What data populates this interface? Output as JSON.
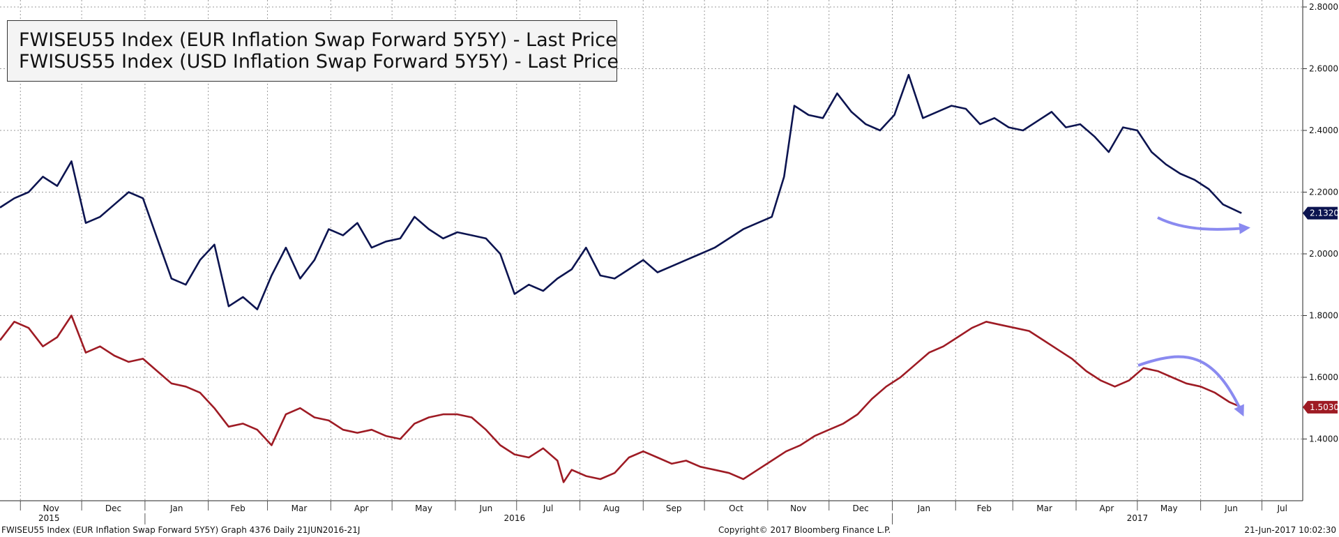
{
  "legend": {
    "items": [
      {
        "label": "FWISEU55 Index (EUR Inflation Swap Forward 5Y5Y) - Last Price",
        "color": "#9e1b24"
      },
      {
        "label": "FWISUS55 Index (USD Inflation Swap Forward 5Y5Y) - Last Price",
        "color": "#0c1450"
      }
    ]
  },
  "footer": {
    "left": "FWISEU55 Index (EUR Inflation Swap Forward 5Y5Y) Graph 4376  Daily 21JUN2016-21J",
    "center": "Copyright© 2017 Bloomberg Finance L.P.",
    "right": "21-Jun-2017 10:02:30"
  },
  "chart_data": {
    "type": "line",
    "y_ticks": [
      "2.8000",
      "2.6000",
      "2.4000",
      "2.2000",
      "2.0000",
      "1.8000",
      "1.6000",
      "1.4000"
    ],
    "ylim": [
      1.2,
      2.8
    ],
    "x_months": [
      "Nov",
      "Dec",
      "Jan",
      "Feb",
      "Mar",
      "Apr",
      "May",
      "Jun",
      "Jul",
      "Aug",
      "Sep",
      "Oct",
      "Nov",
      "Dec",
      "Jan",
      "Feb",
      "Mar",
      "Apr",
      "May",
      "Jun",
      "Jul"
    ],
    "x_years": [
      "2015",
      "2016",
      "2017"
    ],
    "xlim": [
      "2015-10-22",
      "2017-07-21"
    ],
    "grid": true,
    "legend_position": "top-left",
    "series": [
      {
        "name": "FWISEU55 Index (EUR Inflation Swap Forward 5Y5Y) - Last Price",
        "color": "#9e1b24",
        "last_label": "1.5030",
        "points": [
          [
            "2015-10-22",
            1.72
          ],
          [
            "2015-10-29",
            1.78
          ],
          [
            "2015-11-05",
            1.76
          ],
          [
            "2015-11-12",
            1.7
          ],
          [
            "2015-11-19",
            1.73
          ],
          [
            "2015-11-26",
            1.8
          ],
          [
            "2015-12-03",
            1.68
          ],
          [
            "2015-12-10",
            1.7
          ],
          [
            "2015-12-17",
            1.67
          ],
          [
            "2015-12-24",
            1.65
          ],
          [
            "2015-12-31",
            1.66
          ],
          [
            "2016-01-07",
            1.62
          ],
          [
            "2016-01-14",
            1.58
          ],
          [
            "2016-01-21",
            1.57
          ],
          [
            "2016-01-28",
            1.55
          ],
          [
            "2016-02-04",
            1.5
          ],
          [
            "2016-02-11",
            1.44
          ],
          [
            "2016-02-18",
            1.45
          ],
          [
            "2016-02-25",
            1.43
          ],
          [
            "2016-03-03",
            1.38
          ],
          [
            "2016-03-10",
            1.48
          ],
          [
            "2016-03-17",
            1.5
          ],
          [
            "2016-03-24",
            1.47
          ],
          [
            "2016-03-31",
            1.46
          ],
          [
            "2016-04-07",
            1.43
          ],
          [
            "2016-04-14",
            1.42
          ],
          [
            "2016-04-21",
            1.43
          ],
          [
            "2016-04-28",
            1.41
          ],
          [
            "2016-05-05",
            1.4
          ],
          [
            "2016-05-12",
            1.45
          ],
          [
            "2016-05-19",
            1.47
          ],
          [
            "2016-05-26",
            1.48
          ],
          [
            "2016-06-02",
            1.48
          ],
          [
            "2016-06-09",
            1.47
          ],
          [
            "2016-06-16",
            1.43
          ],
          [
            "2016-06-23",
            1.38
          ],
          [
            "2016-06-30",
            1.35
          ],
          [
            "2016-07-07",
            1.34
          ],
          [
            "2016-07-14",
            1.37
          ],
          [
            "2016-07-21",
            1.33
          ],
          [
            "2016-07-24",
            1.26
          ],
          [
            "2016-07-28",
            1.3
          ],
          [
            "2016-08-04",
            1.28
          ],
          [
            "2016-08-11",
            1.27
          ],
          [
            "2016-08-18",
            1.29
          ],
          [
            "2016-08-25",
            1.34
          ],
          [
            "2016-09-01",
            1.36
          ],
          [
            "2016-09-08",
            1.34
          ],
          [
            "2016-09-15",
            1.32
          ],
          [
            "2016-09-22",
            1.33
          ],
          [
            "2016-09-29",
            1.31
          ],
          [
            "2016-10-06",
            1.3
          ],
          [
            "2016-10-13",
            1.29
          ],
          [
            "2016-10-20",
            1.27
          ],
          [
            "2016-10-27",
            1.3
          ],
          [
            "2016-11-03",
            1.33
          ],
          [
            "2016-11-10",
            1.36
          ],
          [
            "2016-11-17",
            1.38
          ],
          [
            "2016-11-24",
            1.41
          ],
          [
            "2016-12-01",
            1.43
          ],
          [
            "2016-12-08",
            1.45
          ],
          [
            "2016-12-15",
            1.48
          ],
          [
            "2016-12-22",
            1.53
          ],
          [
            "2016-12-29",
            1.57
          ],
          [
            "2017-01-05",
            1.6
          ],
          [
            "2017-01-12",
            1.64
          ],
          [
            "2017-01-19",
            1.68
          ],
          [
            "2017-01-26",
            1.7
          ],
          [
            "2017-02-02",
            1.73
          ],
          [
            "2017-02-09",
            1.76
          ],
          [
            "2017-02-16",
            1.78
          ],
          [
            "2017-02-23",
            1.77
          ],
          [
            "2017-03-02",
            1.76
          ],
          [
            "2017-03-09",
            1.75
          ],
          [
            "2017-03-16",
            1.72
          ],
          [
            "2017-03-23",
            1.69
          ],
          [
            "2017-03-30",
            1.66
          ],
          [
            "2017-04-06",
            1.62
          ],
          [
            "2017-04-13",
            1.59
          ],
          [
            "2017-04-20",
            1.57
          ],
          [
            "2017-04-27",
            1.59
          ],
          [
            "2017-05-04",
            1.63
          ],
          [
            "2017-05-11",
            1.62
          ],
          [
            "2017-05-18",
            1.6
          ],
          [
            "2017-05-25",
            1.58
          ],
          [
            "2017-06-01",
            1.57
          ],
          [
            "2017-06-08",
            1.55
          ],
          [
            "2017-06-15",
            1.52
          ],
          [
            "2017-06-21",
            1.503
          ]
        ]
      },
      {
        "name": "FWISUS55 Index (USD Inflation Swap Forward 5Y5Y) - Last Price",
        "color": "#0c1450",
        "last_label": "2.1320",
        "points": [
          [
            "2015-10-22",
            2.15
          ],
          [
            "2015-10-29",
            2.18
          ],
          [
            "2015-11-05",
            2.2
          ],
          [
            "2015-11-12",
            2.25
          ],
          [
            "2015-11-19",
            2.22
          ],
          [
            "2015-11-26",
            2.3
          ],
          [
            "2015-12-03",
            2.1
          ],
          [
            "2015-12-10",
            2.12
          ],
          [
            "2015-12-17",
            2.16
          ],
          [
            "2015-12-24",
            2.2
          ],
          [
            "2015-12-31",
            2.18
          ],
          [
            "2016-01-07",
            2.05
          ],
          [
            "2016-01-14",
            1.92
          ],
          [
            "2016-01-21",
            1.9
          ],
          [
            "2016-01-28",
            1.98
          ],
          [
            "2016-02-04",
            2.03
          ],
          [
            "2016-02-11",
            1.83
          ],
          [
            "2016-02-18",
            1.86
          ],
          [
            "2016-02-25",
            1.82
          ],
          [
            "2016-03-03",
            1.93
          ],
          [
            "2016-03-10",
            2.02
          ],
          [
            "2016-03-17",
            1.92
          ],
          [
            "2016-03-24",
            1.98
          ],
          [
            "2016-03-31",
            2.08
          ],
          [
            "2016-04-07",
            2.06
          ],
          [
            "2016-04-14",
            2.1
          ],
          [
            "2016-04-21",
            2.02
          ],
          [
            "2016-04-28",
            2.04
          ],
          [
            "2016-05-05",
            2.05
          ],
          [
            "2016-05-12",
            2.12
          ],
          [
            "2016-05-19",
            2.08
          ],
          [
            "2016-05-26",
            2.05
          ],
          [
            "2016-06-02",
            2.07
          ],
          [
            "2016-06-09",
            2.06
          ],
          [
            "2016-06-16",
            2.05
          ],
          [
            "2016-06-23",
            2.0
          ],
          [
            "2016-06-30",
            1.87
          ],
          [
            "2016-07-07",
            1.9
          ],
          [
            "2016-07-14",
            1.88
          ],
          [
            "2016-07-21",
            1.92
          ],
          [
            "2016-07-28",
            1.95
          ],
          [
            "2016-08-04",
            2.02
          ],
          [
            "2016-08-11",
            1.93
          ],
          [
            "2016-08-18",
            1.92
          ],
          [
            "2016-08-25",
            1.95
          ],
          [
            "2016-09-01",
            1.98
          ],
          [
            "2016-09-08",
            1.94
          ],
          [
            "2016-09-15",
            1.96
          ],
          [
            "2016-09-22",
            1.98
          ],
          [
            "2016-09-29",
            2.0
          ],
          [
            "2016-10-06",
            2.02
          ],
          [
            "2016-10-13",
            2.05
          ],
          [
            "2016-10-20",
            2.08
          ],
          [
            "2016-10-27",
            2.1
          ],
          [
            "2016-11-03",
            2.12
          ],
          [
            "2016-11-09",
            2.25
          ],
          [
            "2016-11-14",
            2.48
          ],
          [
            "2016-11-21",
            2.45
          ],
          [
            "2016-11-28",
            2.44
          ],
          [
            "2016-12-05",
            2.52
          ],
          [
            "2016-12-12",
            2.46
          ],
          [
            "2016-12-19",
            2.42
          ],
          [
            "2016-12-26",
            2.4
          ],
          [
            "2017-01-02",
            2.45
          ],
          [
            "2017-01-09",
            2.58
          ],
          [
            "2017-01-16",
            2.44
          ],
          [
            "2017-01-23",
            2.46
          ],
          [
            "2017-01-30",
            2.48
          ],
          [
            "2017-02-06",
            2.47
          ],
          [
            "2017-02-13",
            2.42
          ],
          [
            "2017-02-20",
            2.44
          ],
          [
            "2017-02-27",
            2.41
          ],
          [
            "2017-03-06",
            2.4
          ],
          [
            "2017-03-13",
            2.43
          ],
          [
            "2017-03-20",
            2.46
          ],
          [
            "2017-03-27",
            2.41
          ],
          [
            "2017-04-03",
            2.42
          ],
          [
            "2017-04-10",
            2.38
          ],
          [
            "2017-04-17",
            2.33
          ],
          [
            "2017-04-24",
            2.41
          ],
          [
            "2017-05-01",
            2.4
          ],
          [
            "2017-05-08",
            2.33
          ],
          [
            "2017-05-15",
            2.29
          ],
          [
            "2017-05-22",
            2.26
          ],
          [
            "2017-05-29",
            2.24
          ],
          [
            "2017-06-05",
            2.21
          ],
          [
            "2017-06-12",
            2.16
          ],
          [
            "2017-06-21",
            2.132
          ]
        ]
      }
    ]
  }
}
